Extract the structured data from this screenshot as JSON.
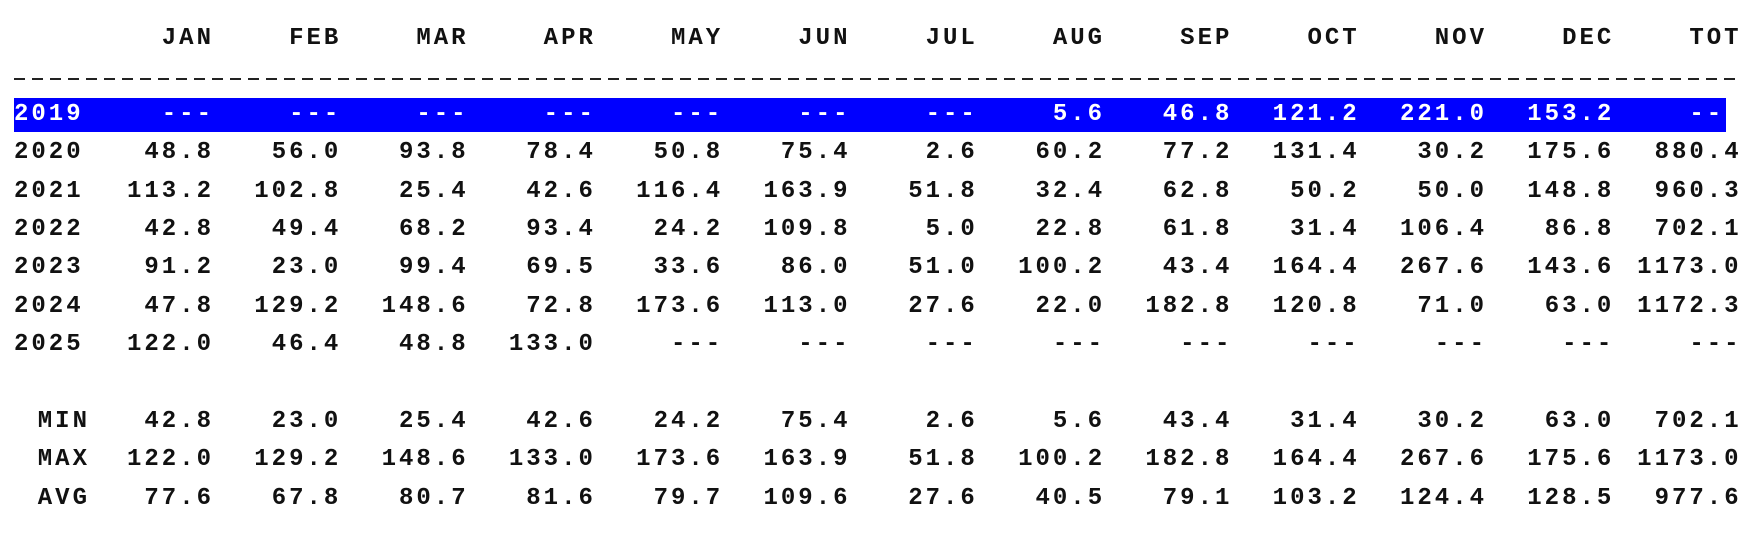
{
  "table": {
    "columns": [
      "JAN",
      "FEB",
      "MAR",
      "APR",
      "MAY",
      "JUN",
      "JUL",
      "AUG",
      "SEP",
      "OCT",
      "NOV",
      "DEC",
      "TOT"
    ],
    "rows": [
      {
        "label": "2019",
        "selected": true,
        "cells": [
          "---",
          "---",
          "---",
          "---",
          "---",
          "---",
          "---",
          "5.6",
          "46.8",
          "121.2",
          "221.0",
          "153.2",
          "---"
        ]
      },
      {
        "label": "2020",
        "cells": [
          "48.8",
          "56.0",
          "93.8",
          "78.4",
          "50.8",
          "75.4",
          "2.6",
          "60.2",
          "77.2",
          "131.4",
          "30.2",
          "175.6",
          "880.4"
        ]
      },
      {
        "label": "2021",
        "cells": [
          "113.2",
          "102.8",
          "25.4",
          "42.6",
          "116.4",
          "163.9",
          "51.8",
          "32.4",
          "62.8",
          "50.2",
          "50.0",
          "148.8",
          "960.3"
        ]
      },
      {
        "label": "2022",
        "cells": [
          "42.8",
          "49.4",
          "68.2",
          "93.4",
          "24.2",
          "109.8",
          "5.0",
          "22.8",
          "61.8",
          "31.4",
          "106.4",
          "86.8",
          "702.1"
        ]
      },
      {
        "label": "2023",
        "cells": [
          "91.2",
          "23.0",
          "99.4",
          "69.5",
          "33.6",
          "86.0",
          "51.0",
          "100.2",
          "43.4",
          "164.4",
          "267.6",
          "143.6",
          "1173.0"
        ]
      },
      {
        "label": "2024",
        "cells": [
          "47.8",
          "129.2",
          "148.6",
          "72.8",
          "173.6",
          "113.0",
          "27.6",
          "22.0",
          "182.8",
          "120.8",
          "71.0",
          "63.0",
          "1172.3"
        ]
      },
      {
        "label": "2025",
        "cells": [
          "122.0",
          "46.4",
          "48.8",
          "133.0",
          "---",
          "---",
          "---",
          "---",
          "---",
          "---",
          "---",
          "---",
          "---"
        ]
      }
    ],
    "stats": [
      {
        "label": "MIN",
        "cells": [
          "42.8",
          "23.0",
          "25.4",
          "42.6",
          "24.2",
          "75.4",
          "2.6",
          "5.6",
          "43.4",
          "31.4",
          "30.2",
          "63.0",
          "702.1"
        ]
      },
      {
        "label": "MAX",
        "cells": [
          "122.0",
          "129.2",
          "148.6",
          "133.0",
          "173.6",
          "163.9",
          "51.8",
          "100.2",
          "182.8",
          "164.4",
          "267.6",
          "175.6",
          "1173.0"
        ]
      },
      {
        "label": "AVG",
        "cells": [
          "77.6",
          "67.8",
          "80.7",
          "81.6",
          "79.7",
          "109.6",
          "27.6",
          "40.5",
          "79.1",
          "103.2",
          "124.4",
          "128.5",
          "977.6"
        ]
      }
    ]
  }
}
